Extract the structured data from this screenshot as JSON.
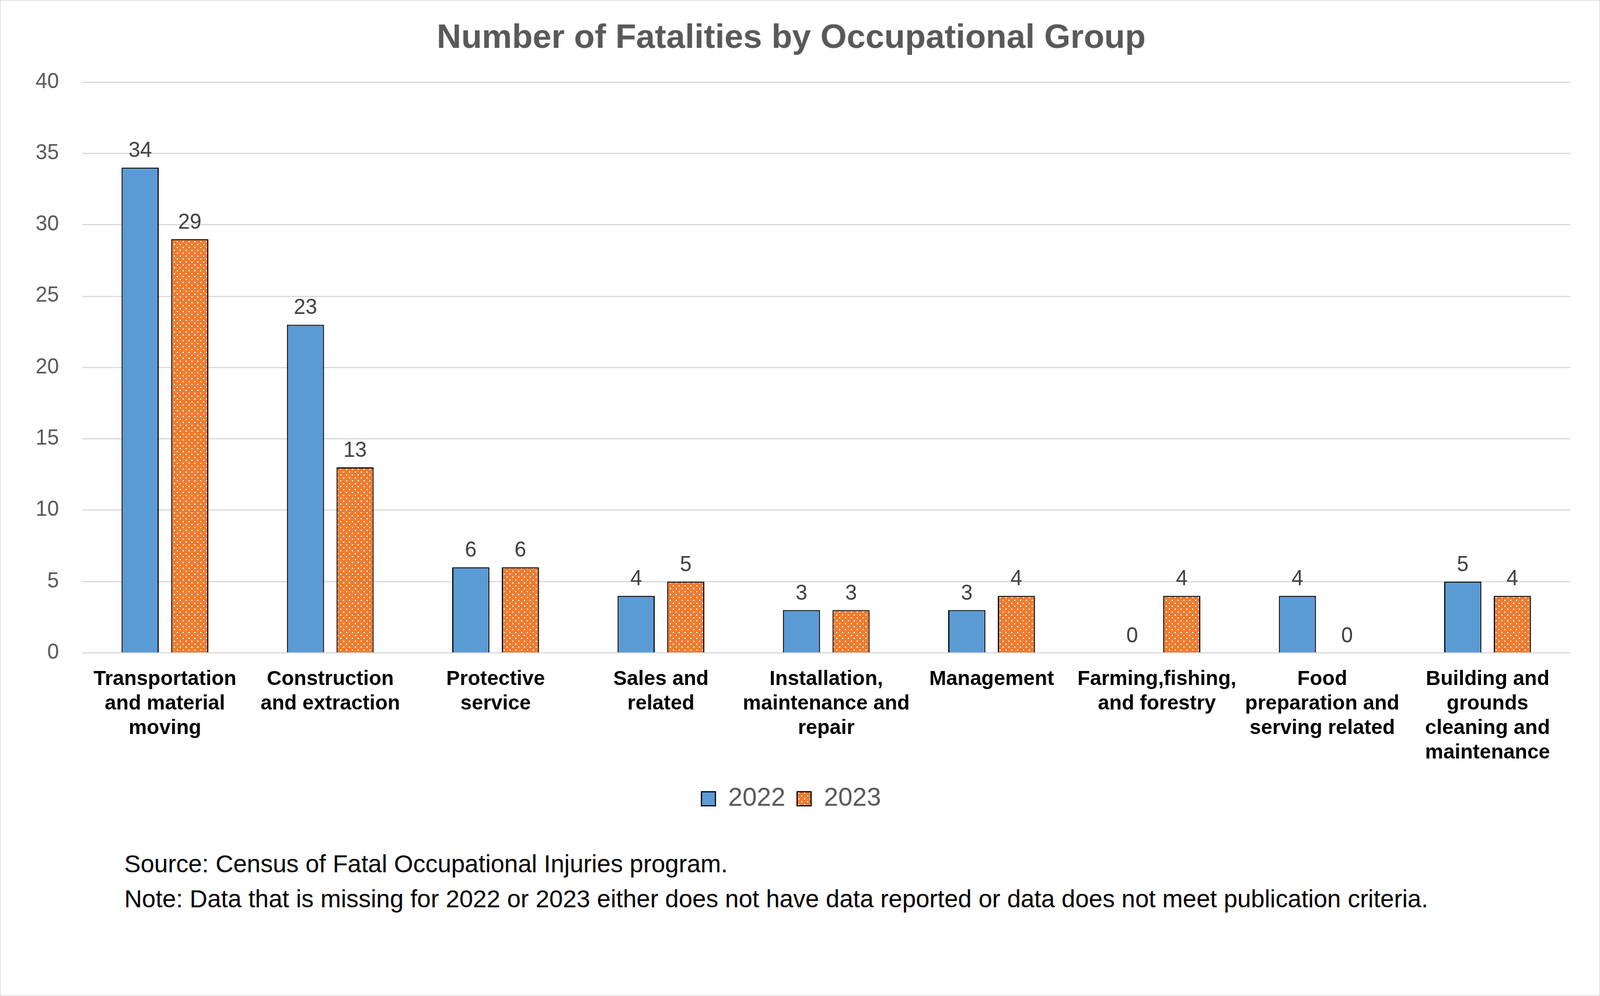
{
  "chart_data": {
    "type": "bar",
    "title": "Number of Fatalities by Occupational Group",
    "categories": [
      "Transportation and material moving",
      "Construction and extraction",
      "Protective service",
      "Sales and related",
      "Installation, maintenance and repair",
      "Management",
      "Farming,fishing, and forestry",
      "Food preparation and serving related",
      "Building and grounds cleaning and maintenance"
    ],
    "series": [
      {
        "name": "2022",
        "color": "#5b9bd5",
        "values": [
          34,
          23,
          6,
          4,
          3,
          3,
          0,
          4,
          5
        ]
      },
      {
        "name": "2023",
        "color": "#ed7d31",
        "values": [
          29,
          13,
          6,
          5,
          3,
          4,
          4,
          0,
          4
        ]
      }
    ],
    "ylim": [
      0,
      40
    ],
    "yticks": [
      0,
      5,
      10,
      15,
      20,
      25,
      30,
      35,
      40
    ],
    "grid": true,
    "legend": "bottom",
    "data_labels": true,
    "source": "Source: Census of Fatal Occupational Injuries program.",
    "note": "Note: Data that is missing for 2022 or 2023 either does not have data reported or data does not meet publication criteria."
  }
}
